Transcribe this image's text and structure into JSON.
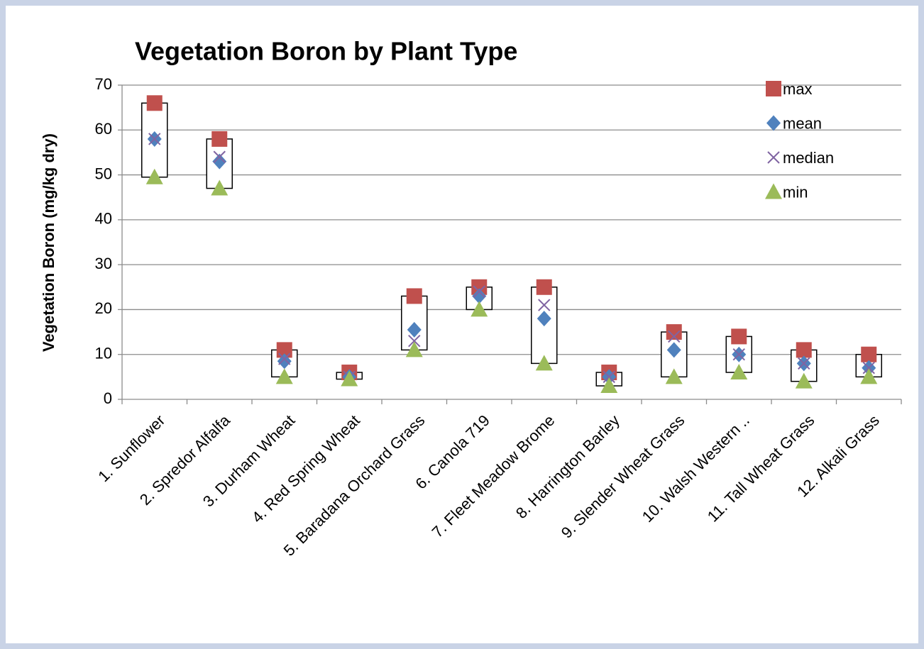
{
  "chart_data": {
    "type": "box-markers",
    "title": "Vegetation Boron by Plant Type",
    "y_label": "Vegetation  Boron (mg/kg dry)",
    "categories": [
      "1. Sunflower",
      "2. Spredor Alfalfa",
      "3. Durham Wheat",
      "4. Red Spring Wheat",
      "5. Baradana Orchard  Grass",
      "6. Canola 719",
      "7. Fleet Meadow Brome",
      "8. Harrington Barley",
      "9. Slender Wheat  Grass",
      "10. Walsh Western ..",
      "11. Tall Wheat  Grass",
      "12. Alkali Grass"
    ],
    "series": [
      {
        "name": "max",
        "color": "#c0504d",
        "marker": "square",
        "values": [
          66,
          58,
          11,
          6,
          23,
          25,
          25,
          6,
          15,
          14,
          11,
          10
        ]
      },
      {
        "name": "mean",
        "color": "#4f81bd",
        "marker": "diamond",
        "values": [
          58,
          53,
          8.5,
          5,
          15.5,
          23,
          18,
          5,
          11,
          10,
          8,
          7
        ]
      },
      {
        "name": "median",
        "color": "#8064a2",
        "marker": "x",
        "values": [
          58,
          54,
          9,
          5,
          13,
          24,
          21,
          5,
          14,
          10,
          8,
          7
        ]
      },
      {
        "name": "min",
        "color": "#9bbb59",
        "marker": "triangle",
        "values": [
          49.5,
          47,
          5,
          4.5,
          11,
          20,
          8,
          3,
          5,
          6,
          4,
          5
        ]
      }
    ],
    "ylim": [
      0,
      70
    ],
    "yticks": [
      0,
      10,
      20,
      30,
      40,
      50,
      60,
      70
    ],
    "grid": true,
    "legend": "top-right"
  }
}
